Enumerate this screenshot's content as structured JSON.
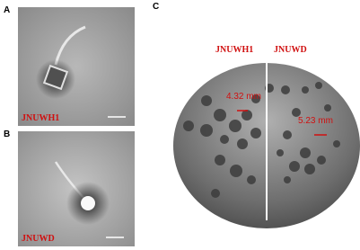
{
  "panels": [
    {
      "letter": "A",
      "label": "JNUWH1"
    },
    {
      "letter": "B",
      "label": "JNUWD"
    },
    {
      "letter": "C",
      "left_label": "JNUWH1",
      "right_label": "JNUWD",
      "measurements": [
        "4.32 mm",
        "5.23 mm"
      ]
    }
  ]
}
